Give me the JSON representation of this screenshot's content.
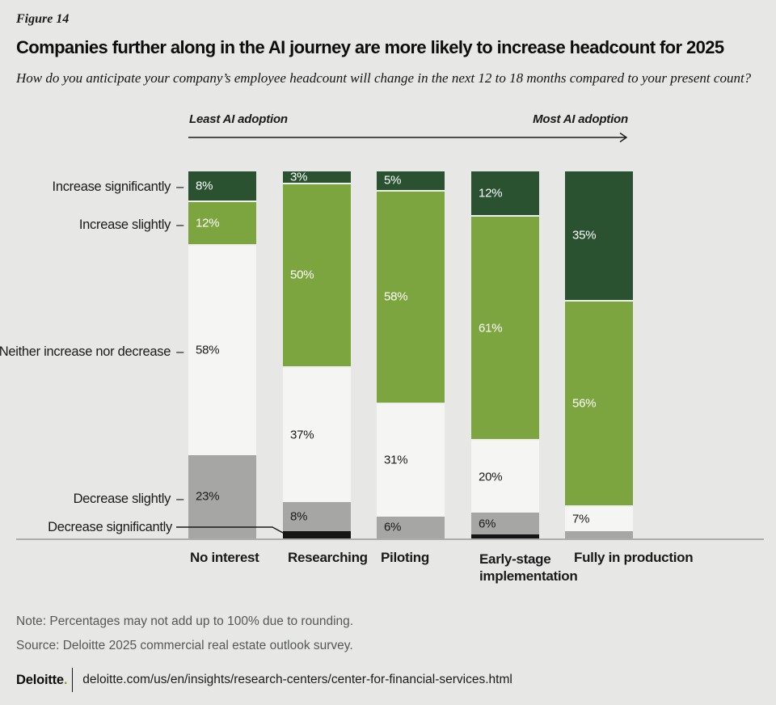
{
  "figure": {
    "label": "Figure 14",
    "title": "Companies further along in the AI journey are more likely to increase headcount for 2025",
    "subtitle": "How do you anticipate your company’s employee headcount will change in the next 12 to 18 months compared to your present count?"
  },
  "adoption_scale": {
    "left_label": "Least AI adoption",
    "right_label": "Most AI adoption"
  },
  "chart_data": {
    "type": "bar",
    "stacked": true,
    "orientation": "vertical",
    "title": "Companies further along in the AI journey are more likely to increase headcount for 2025",
    "unit": "%",
    "ylim": [
      0,
      100
    ],
    "categories": [
      "No interest",
      "Researching",
      "Piloting",
      "Early-stage implementation",
      "Fully in production"
    ],
    "y_axis_labels": [
      {
        "text": "Increase significantly",
        "tick": "–"
      },
      {
        "text": "Increase slightly",
        "tick": "–"
      },
      {
        "text": "Neither increase nor decrease",
        "tick": "–"
      },
      {
        "text": "Decrease slightly",
        "tick": "–"
      },
      {
        "text": "Decrease significantly",
        "tick": ""
      }
    ],
    "series": [
      {
        "name": "Increase significantly",
        "color": "#2a5231",
        "label_color": "#ffffff",
        "values": [
          8,
          3,
          5,
          12,
          35
        ],
        "value_labels": [
          "8%",
          "3%",
          "5%",
          "12%",
          "35%"
        ]
      },
      {
        "name": "Increase slightly",
        "color": "#7da53f",
        "label_color": "#ffffff",
        "values": [
          12,
          50,
          58,
          61,
          56
        ],
        "value_labels": [
          "12%",
          "50%",
          "58%",
          "61%",
          "56%"
        ]
      },
      {
        "name": "Neither increase nor decrease",
        "color": "#f5f5f3",
        "label_color": "#1a1a1a",
        "values": [
          58,
          37,
          31,
          20,
          7
        ],
        "value_labels": [
          "58%",
          "37%",
          "31%",
          "20%",
          "7%"
        ]
      },
      {
        "name": "Decrease slightly",
        "color": "#a6a6a4",
        "label_color": "#1a1a1a",
        "values": [
          23,
          8,
          6,
          6,
          2
        ],
        "value_labels": [
          "23%",
          "8%",
          "6%",
          "6%",
          null
        ]
      },
      {
        "name": "Decrease significantly",
        "color": "#151515",
        "label_color": "#ffffff",
        "values": [
          0,
          2,
          0,
          1,
          0
        ],
        "value_labels": [
          null,
          null,
          null,
          null,
          null
        ]
      }
    ],
    "colors": {
      "background": "#e7e7e6",
      "increase_significantly": "#2a5231",
      "increase_slightly": "#7da53f",
      "neither": "#f5f5f3",
      "decrease_slightly": "#a6a6a4",
      "decrease_significantly": "#151515",
      "baseline": "#adadab",
      "brand_green": "#86a832"
    }
  },
  "note": "Note: Percentages may not add up to 100% due to rounding.",
  "source": "Source: Deloitte 2025 commercial real estate outlook survey.",
  "footer": {
    "brand": "Deloitte",
    "brand_dot": ".",
    "url": "deloitte.com/us/en/insights/research-centers/center-for-financial-services.html"
  }
}
